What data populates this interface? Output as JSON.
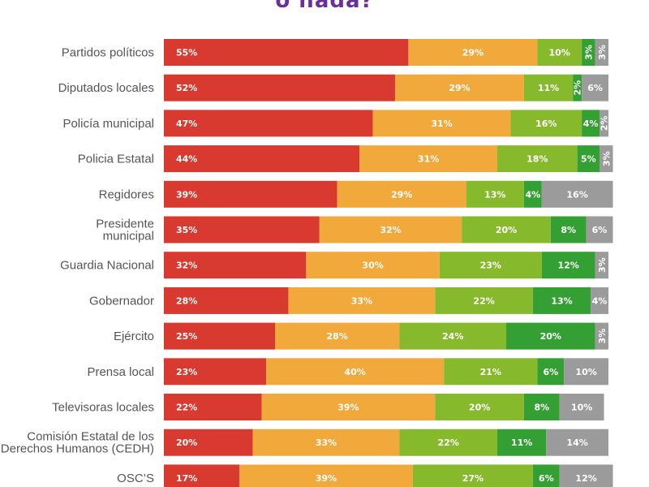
{
  "page": {
    "title_fragment": "o nada?"
  },
  "colors": {
    "seg1": "#d93a30",
    "seg2": "#f2a93c",
    "seg3": "#86b92b",
    "seg4": "#34a034",
    "seg5": "#9b9b9b"
  },
  "chart_data": {
    "type": "bar",
    "orientation": "horizontal",
    "stacked": true,
    "percent_stacked": true,
    "title": "o nada?",
    "xlim": [
      0,
      100
    ],
    "legend": "none",
    "grid": false,
    "categories": [
      "Partidos políticos",
      "Diputados locales",
      "Policía municipal",
      "Policia Estatal",
      "Regidores",
      "Presidente municipal",
      "Guardia Nacional",
      "Gobernador",
      "Ejército",
      "Prensa local",
      "Televisoras locales",
      "Comisión Estatal de los Derechos Humanos (CEDH)",
      "OSC’S"
    ],
    "category_lines": [
      [
        "Partidos políticos"
      ],
      [
        "Diputados locales"
      ],
      [
        "Policía municipal"
      ],
      [
        "Policia Estatal"
      ],
      [
        "Regidores"
      ],
      [
        "Presidente",
        "municipal"
      ],
      [
        "Guardia Nacional"
      ],
      [
        "Gobernador"
      ],
      [
        "Ejército"
      ],
      [
        "Prensa local"
      ],
      [
        "Televisoras locales"
      ],
      [
        "Comisión Estatal de los",
        "Derechos Humanos (CEDH)"
      ],
      [
        "OSC’S"
      ]
    ],
    "series": [
      {
        "color": "#d93a30",
        "values": [
          55,
          52,
          47,
          44,
          39,
          35,
          32,
          28,
          25,
          23,
          22,
          20,
          17
        ]
      },
      {
        "color": "#f2a93c",
        "values": [
          29,
          29,
          31,
          31,
          29,
          32,
          30,
          33,
          28,
          40,
          39,
          33,
          39
        ]
      },
      {
        "color": "#86b92b",
        "values": [
          10,
          11,
          16,
          18,
          13,
          20,
          23,
          22,
          24,
          21,
          20,
          22,
          27
        ]
      },
      {
        "color": "#34a034",
        "values": [
          3,
          2,
          4,
          5,
          4,
          8,
          12,
          13,
          20,
          6,
          8,
          11,
          6
        ]
      },
      {
        "color": "#9b9b9b",
        "values": [
          3,
          6,
          2,
          3,
          16,
          6,
          3,
          4,
          3,
          10,
          10,
          14,
          12
        ]
      }
    ]
  }
}
